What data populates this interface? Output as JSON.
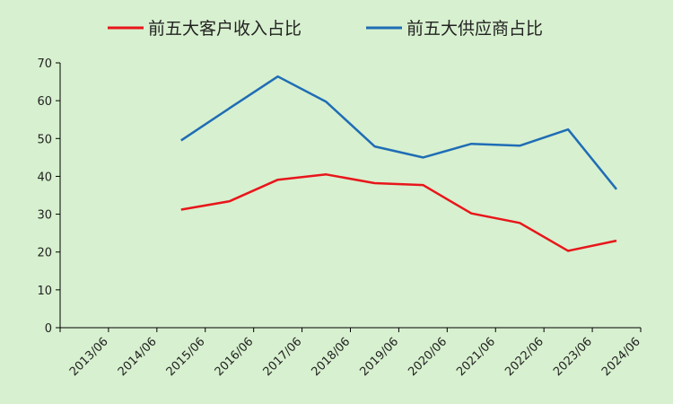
{
  "chart_data": {
    "type": "line",
    "categories": [
      "2013/06",
      "2014/06",
      "2015/06",
      "2016/06",
      "2017/06",
      "2018/06",
      "2019/06",
      "2020/06",
      "2021/06",
      "2022/06",
      "2023/06",
      "2024/06"
    ],
    "ylim": [
      0,
      70
    ],
    "yticks": [
      0,
      10,
      20,
      30,
      40,
      50,
      60,
      70
    ],
    "legend_position": "top",
    "grid": false,
    "series": [
      {
        "name": "前五大客户收入占比",
        "color": "#e8161b",
        "x": [
          "2015/06",
          "2016/06",
          "2017/06",
          "2018/06",
          "2019/06",
          "2020/06",
          "2021/06",
          "2022/06",
          "2023/06",
          "2024/06"
        ],
        "values": [
          31.2,
          33.4,
          39.1,
          40.5,
          38.2,
          37.7,
          30.2,
          27.7,
          20.3,
          23.0
        ]
      },
      {
        "name": "前五大供应商占比",
        "color": "#1f6db5",
        "x": [
          "2015/06",
          "2016/06",
          "2017/06",
          "2018/06",
          "2019/06",
          "2020/06",
          "2021/06",
          "2022/06",
          "2023/06",
          "2024/06"
        ],
        "values": [
          49.5,
          58.0,
          66.4,
          59.7,
          47.9,
          45.0,
          48.6,
          48.1,
          52.4,
          36.6
        ]
      }
    ]
  }
}
